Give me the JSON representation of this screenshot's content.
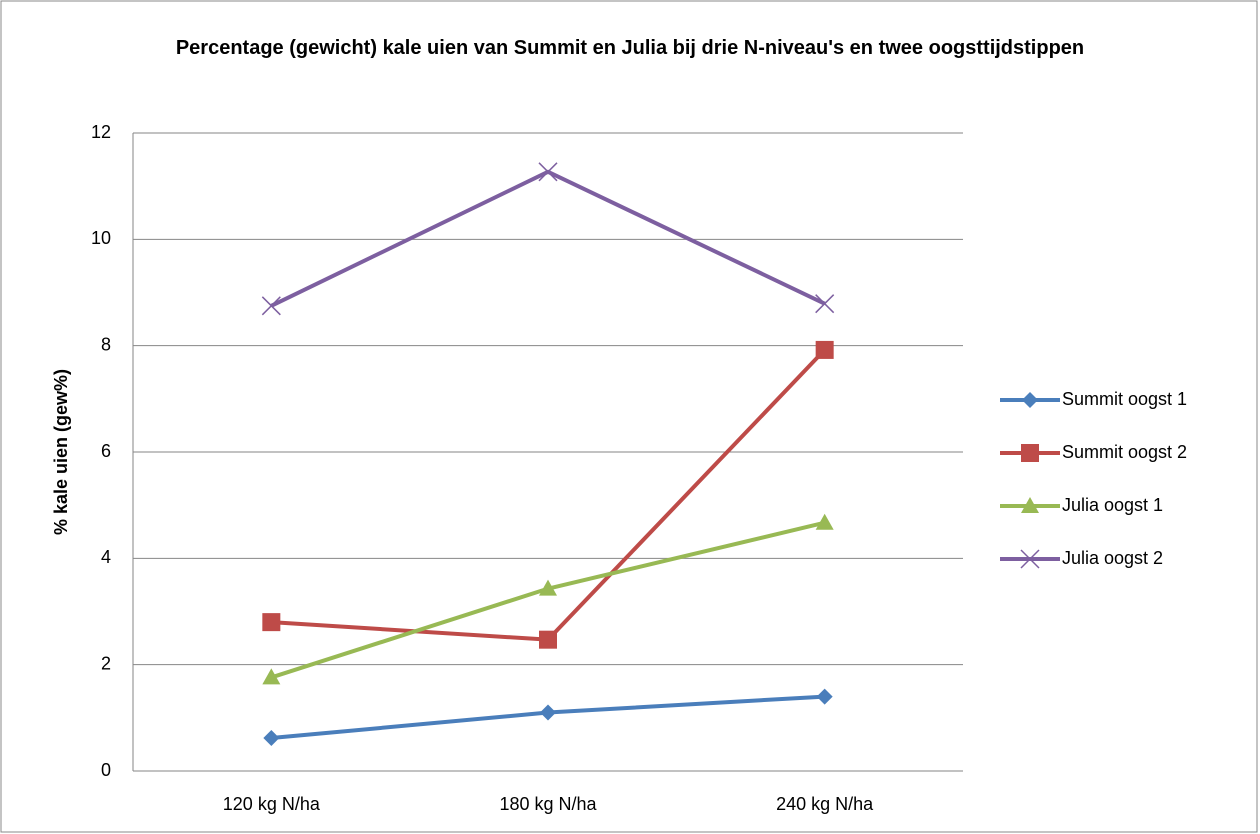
{
  "chart_data": {
    "type": "line",
    "title": "Percentage (gewicht) kale uien van Summit en Julia bij drie N-niveau's en twee oogsttijdstippen",
    "y_label": "% kale uien (gew%)",
    "categories": [
      "120 kg N/ha",
      "180 kg N/ha",
      "240 kg N/ha"
    ],
    "series": [
      {
        "name": "Summit oogst 1",
        "color": "#4a7ebb",
        "marker": "diamond",
        "values": [
          0.62,
          1.1,
          1.4
        ]
      },
      {
        "name": "Summit oogst 2",
        "color": "#be4b48",
        "marker": "square",
        "values": [
          2.8,
          2.47,
          7.92
        ]
      },
      {
        "name": "Julia oogst 1",
        "color": "#98b954",
        "marker": "triangle",
        "values": [
          1.76,
          3.43,
          4.67
        ]
      },
      {
        "name": "Julia oogst 2",
        "color": "#7d5fa0",
        "marker": "x",
        "values": [
          8.75,
          11.27,
          8.79
        ]
      }
    ],
    "ylim": [
      0,
      12
    ],
    "yticks": [
      0,
      2,
      4,
      6,
      8,
      10,
      12
    ],
    "grid": true,
    "legend": "right"
  }
}
